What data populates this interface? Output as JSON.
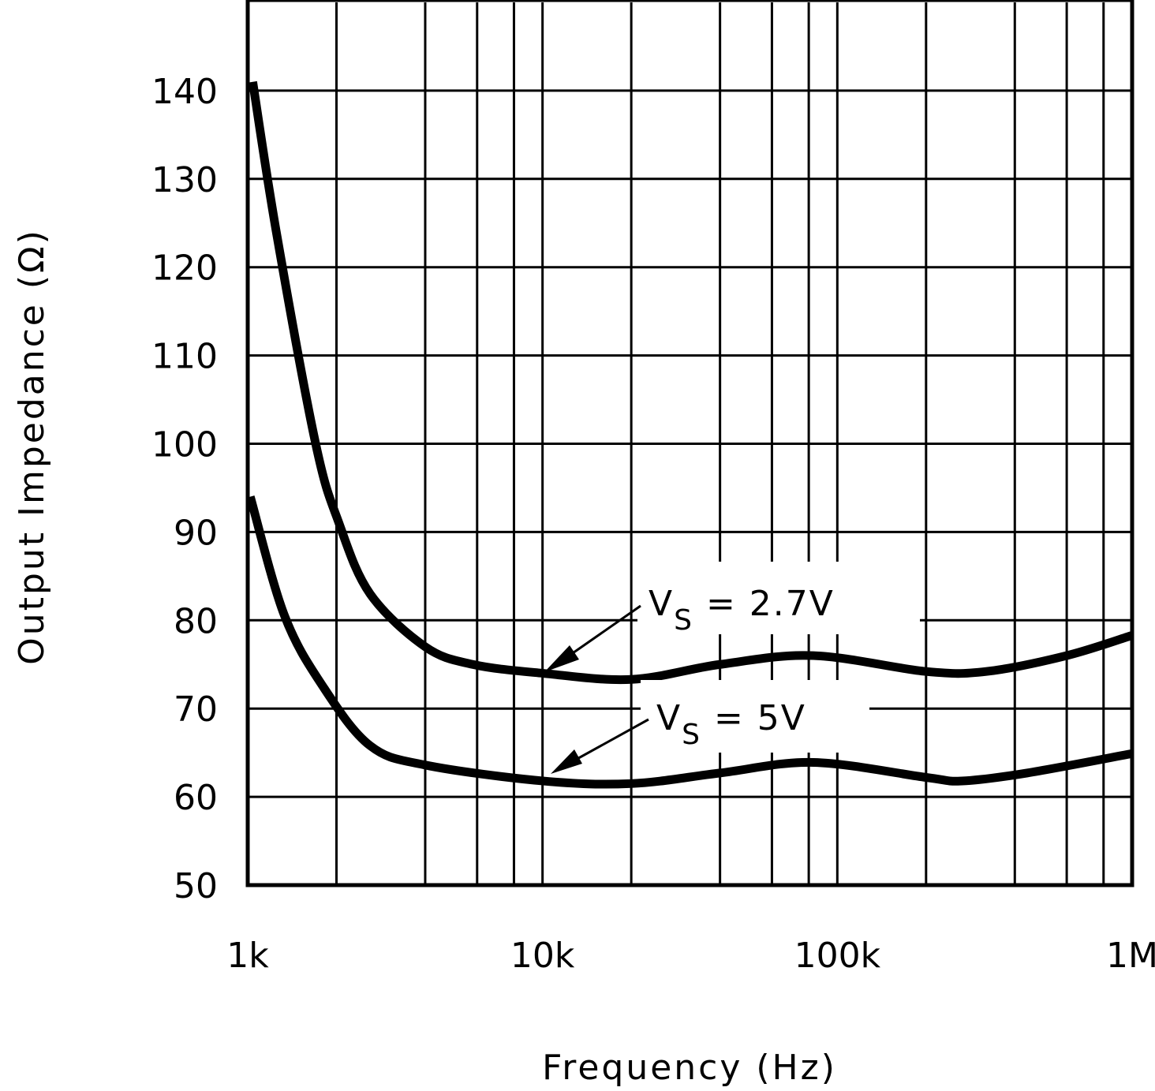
{
  "chart_data": {
    "type": "line",
    "title": "",
    "xlabel": "Frequency (Hz)",
    "ylabel": "Output Impedance (Ω)",
    "x_scale": "log",
    "xlim": [
      1000,
      1000000
    ],
    "ylim": [
      50,
      150
    ],
    "grid": true,
    "x_ticks": [
      1000,
      10000,
      100000,
      1000000
    ],
    "x_tick_labels": [
      "1k",
      "10k",
      "100k",
      "1M"
    ],
    "x_minor_grid_multipliers": [
      2,
      4,
      6,
      8
    ],
    "y_ticks": [
      50,
      60,
      70,
      80,
      90,
      100,
      110,
      120,
      130,
      140
    ],
    "y_tick_labels": [
      "50",
      "60",
      "70",
      "80",
      "90",
      "100",
      "110",
      "120",
      "130",
      "140"
    ],
    "series": [
      {
        "name": "VS = 2.7V",
        "label_main": "V",
        "label_sub": "S",
        "label_rest": " = 2.7V",
        "x": [
          1040,
          1250,
          1700,
          2040,
          2600,
          4000,
          5800,
          10000,
          20000,
          40000,
          83000,
          200000,
          320000,
          600000,
          1000000
        ],
        "y": [
          141,
          124,
          100,
          91,
          83,
          77,
          75,
          74,
          73.3,
          75,
          76,
          74.2,
          74.2,
          76,
          78.3
        ]
      },
      {
        "name": "VS = 5V",
        "label_main": "V",
        "label_sub": "S",
        "label_rest": " = 5V",
        "x": [
          1020,
          1330,
          1800,
          2600,
          4000,
          10000,
          20000,
          40000,
          83000,
          200000,
          265000,
          440000,
          1000000
        ],
        "y": [
          94,
          80.6,
          72.5,
          65.8,
          63.6,
          61.8,
          61.5,
          62.7,
          63.9,
          62.2,
          61.8,
          62.7,
          64.9
        ]
      }
    ],
    "colors": {
      "line": "#000000",
      "background": "#ffffff"
    }
  }
}
